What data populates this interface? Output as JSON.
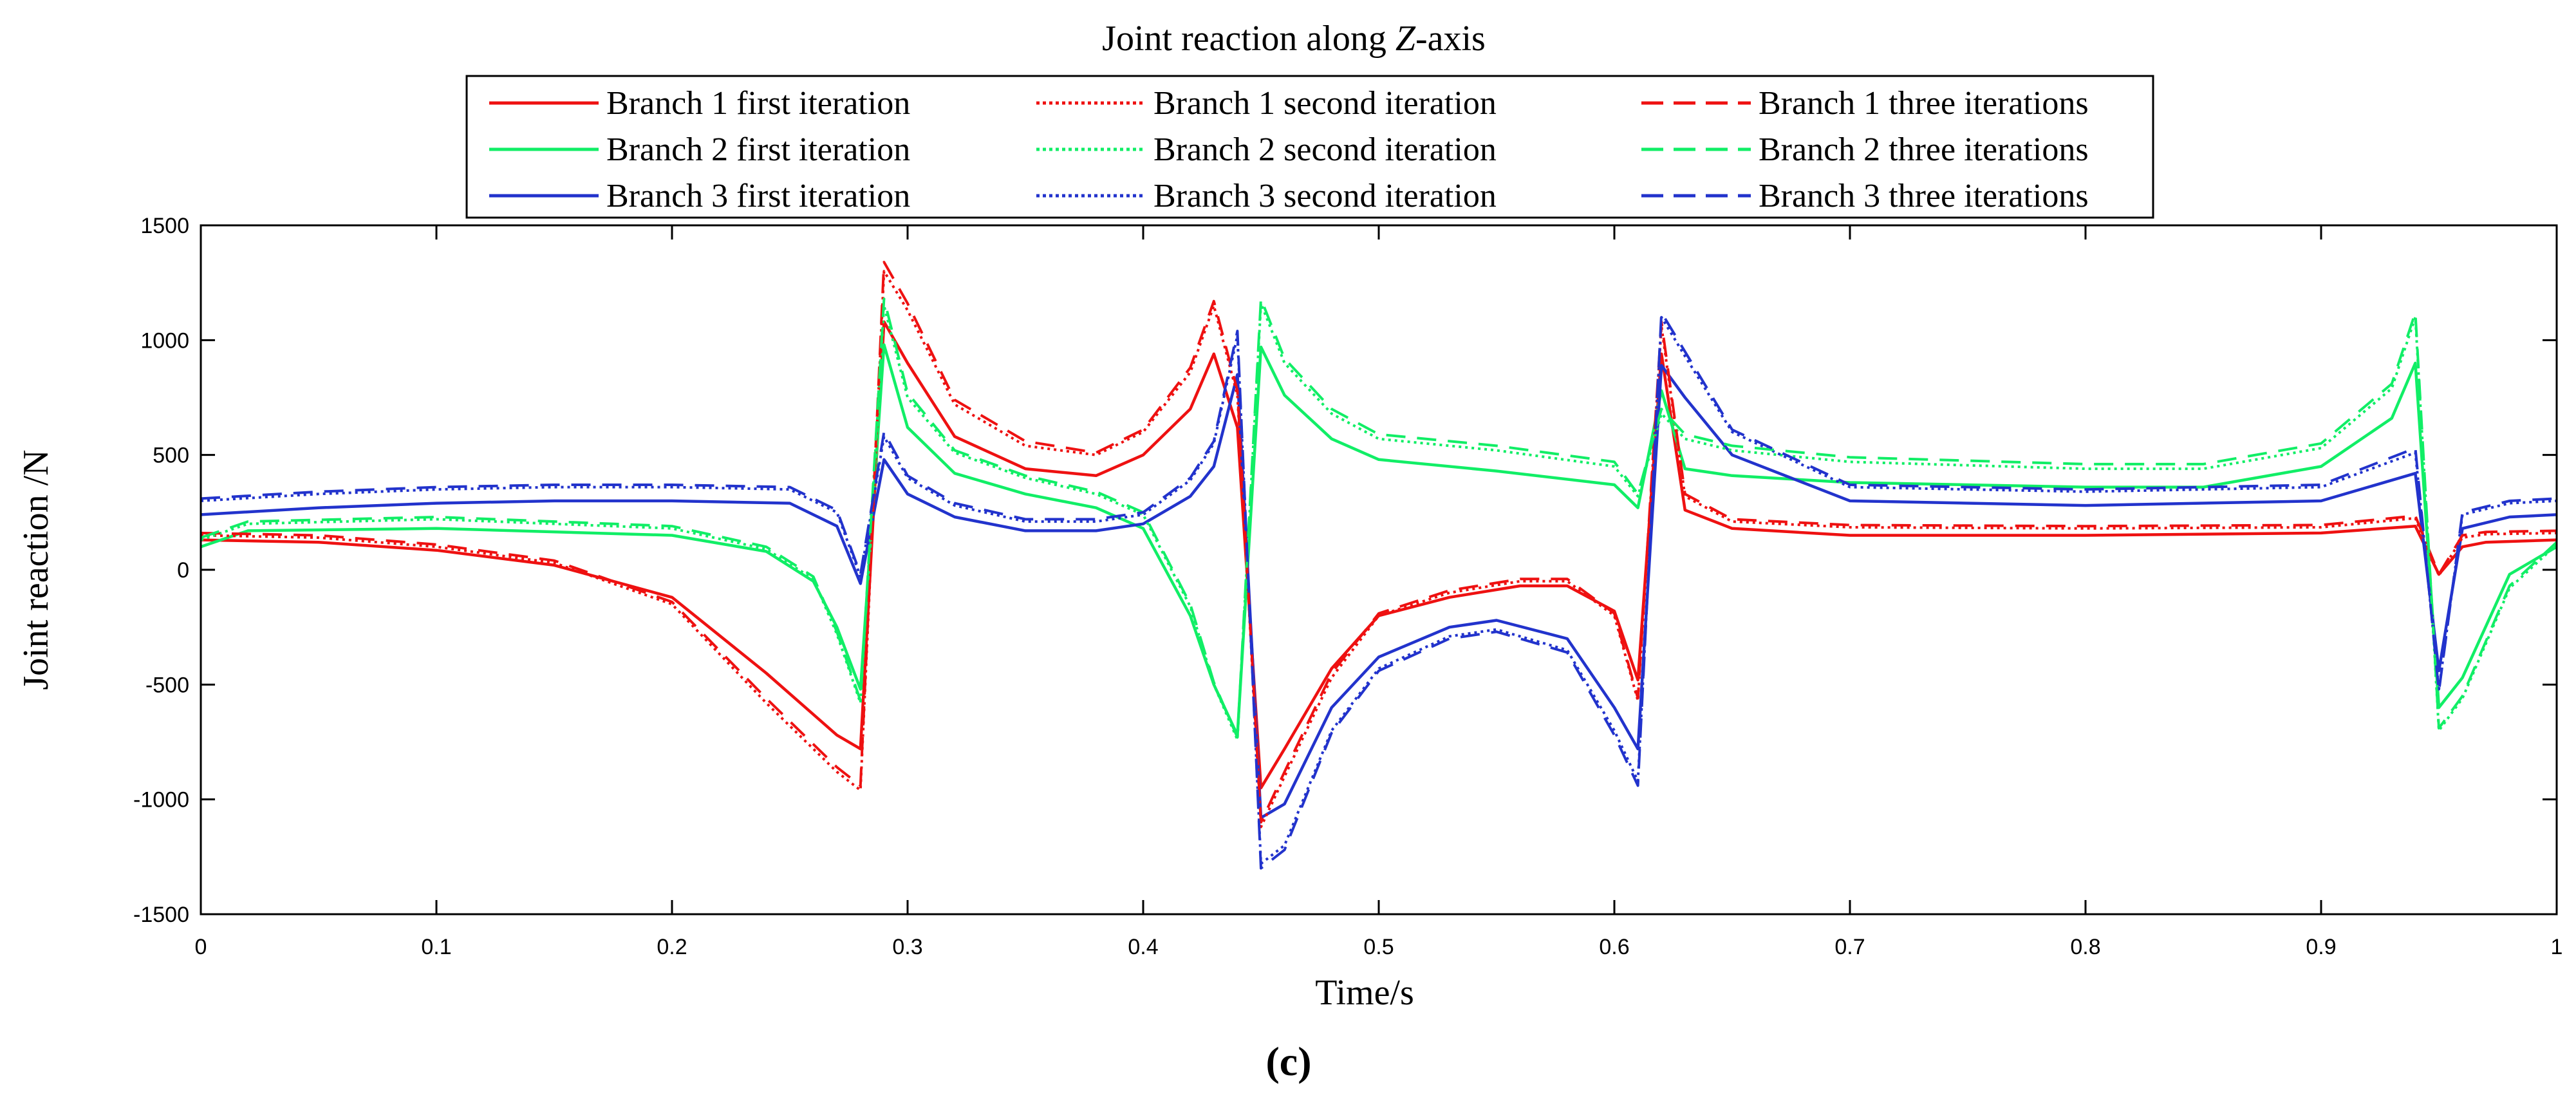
{
  "chart_data": {
    "type": "line",
    "title": "Joint reaction along Z-axis",
    "title_parts": {
      "pre": "Joint reaction along ",
      "italic": "Z",
      "post": "-axis"
    },
    "xlabel": "Time/s",
    "ylabel": "Joint reaction /N",
    "panel_label": "(c)",
    "xlim": [
      0,
      1
    ],
    "ylim": [
      -1500,
      1500
    ],
    "xticks": [
      0,
      0.1,
      0.2,
      0.3,
      0.4,
      0.5,
      0.6,
      0.7,
      0.8,
      0.9,
      1
    ],
    "xtick_labels": [
      "0",
      "0.1",
      "0.2",
      "0.3",
      "0.4",
      "0.5",
      "0.6",
      "0.7",
      "0.8",
      "0.9",
      "1"
    ],
    "yticks": [
      -1500,
      -1000,
      -500,
      0,
      500,
      1000,
      1500
    ],
    "ytick_labels": [
      "-1500",
      "-1000",
      "-500",
      "0",
      "500",
      "1000",
      "1500"
    ],
    "grid": false,
    "legend_placement": "top",
    "colors": {
      "branch1": "#ee1111",
      "branch2": "#11ee66",
      "branch3": "#2233cc",
      "axis": "#000000"
    },
    "series": [
      {
        "name": "Branch 1 first iteration",
        "branch": 1,
        "dash": "solid",
        "x": [
          0,
          0.05,
          0.1,
          0.15,
          0.2,
          0.24,
          0.27,
          0.28,
          0.29,
          0.3,
          0.32,
          0.35,
          0.38,
          0.4,
          0.42,
          0.43,
          0.44,
          0.45,
          0.46,
          0.48,
          0.5,
          0.53,
          0.56,
          0.58,
          0.6,
          0.61,
          0.62,
          0.63,
          0.65,
          0.7,
          0.8,
          0.9,
          0.94,
          0.95,
          0.96,
          0.97,
          1
        ],
        "y": [
          130,
          120,
          85,
          20,
          -120,
          -450,
          -720,
          -780,
          1080,
          900,
          580,
          440,
          410,
          500,
          700,
          940,
          620,
          -950,
          -780,
          -430,
          -200,
          -120,
          -70,
          -70,
          -180,
          -480,
          940,
          260,
          180,
          150,
          150,
          160,
          190,
          -20,
          100,
          120,
          130
        ]
      },
      {
        "name": "Branch 1 second iteration",
        "branch": 1,
        "dash": "dot",
        "x": [
          0,
          0.05,
          0.1,
          0.15,
          0.2,
          0.24,
          0.27,
          0.28,
          0.29,
          0.3,
          0.32,
          0.35,
          0.38,
          0.4,
          0.42,
          0.43,
          0.44,
          0.45,
          0.46,
          0.48,
          0.5,
          0.53,
          0.56,
          0.58,
          0.6,
          0.61,
          0.62,
          0.63,
          0.65,
          0.7,
          0.8,
          0.9,
          0.94,
          0.95,
          0.96,
          0.97,
          1
        ],
        "y": [
          150,
          140,
          100,
          30,
          -150,
          -580,
          -880,
          -960,
          1300,
          1130,
          720,
          540,
          500,
          600,
          860,
          1150,
          760,
          -1120,
          -900,
          -470,
          -200,
          -100,
          -50,
          -50,
          -200,
          -570,
          1060,
          320,
          210,
          185,
          180,
          185,
          225,
          -25,
          140,
          155,
          160
        ]
      },
      {
        "name": "Branch 1 three iterations",
        "branch": 1,
        "dash": "dash",
        "x": [
          0,
          0.05,
          0.1,
          0.15,
          0.2,
          0.24,
          0.27,
          0.28,
          0.29,
          0.3,
          0.32,
          0.35,
          0.38,
          0.4,
          0.42,
          0.43,
          0.44,
          0.45,
          0.46,
          0.48,
          0.5,
          0.53,
          0.56,
          0.58,
          0.6,
          0.61,
          0.62,
          0.63,
          0.65,
          0.7,
          0.8,
          0.9,
          0.94,
          0.95,
          0.96,
          0.97,
          1
        ],
        "y": [
          160,
          150,
          110,
          40,
          -140,
          -560,
          -860,
          -940,
          1340,
          1160,
          740,
          560,
          510,
          610,
          880,
          1170,
          780,
          -1100,
          -880,
          -450,
          -190,
          -90,
          -40,
          -40,
          -190,
          -560,
          1080,
          330,
          220,
          195,
          190,
          195,
          235,
          -20,
          150,
          165,
          170
        ]
      },
      {
        "name": "Branch 2 first iteration",
        "branch": 2,
        "dash": "solid",
        "x": [
          0,
          0.02,
          0.1,
          0.2,
          0.24,
          0.26,
          0.27,
          0.28,
          0.29,
          0.3,
          0.32,
          0.35,
          0.38,
          0.4,
          0.42,
          0.43,
          0.44,
          0.45,
          0.46,
          0.48,
          0.5,
          0.55,
          0.6,
          0.61,
          0.62,
          0.63,
          0.65,
          0.7,
          0.8,
          0.85,
          0.9,
          0.93,
          0.94,
          0.95,
          0.96,
          0.98,
          1
        ],
        "y": [
          100,
          170,
          180,
          150,
          80,
          -50,
          -250,
          -520,
          980,
          620,
          420,
          330,
          270,
          180,
          -200,
          -500,
          -720,
          970,
          760,
          570,
          480,
          430,
          370,
          270,
          780,
          440,
          410,
          380,
          360,
          360,
          450,
          660,
          900,
          -600,
          -470,
          -20,
          100
        ]
      },
      {
        "name": "Branch 2 second iteration",
        "branch": 2,
        "dash": "dot",
        "x": [
          0,
          0.02,
          0.1,
          0.2,
          0.24,
          0.26,
          0.27,
          0.28,
          0.29,
          0.3,
          0.32,
          0.35,
          0.38,
          0.4,
          0.42,
          0.43,
          0.44,
          0.45,
          0.46,
          0.48,
          0.5,
          0.55,
          0.6,
          0.61,
          0.62,
          0.63,
          0.65,
          0.7,
          0.8,
          0.85,
          0.9,
          0.93,
          0.94,
          0.95,
          0.96,
          0.98,
          1
        ],
        "y": [
          130,
          200,
          220,
          180,
          90,
          -40,
          -280,
          -580,
          1150,
          750,
          510,
          400,
          330,
          240,
          -160,
          -500,
          -740,
          1160,
          900,
          680,
          570,
          520,
          450,
          320,
          680,
          570,
          520,
          470,
          440,
          440,
          530,
          790,
          1100,
          -700,
          -560,
          -80,
          110
        ]
      },
      {
        "name": "Branch 2 three iterations",
        "branch": 2,
        "dash": "dash",
        "x": [
          0,
          0.02,
          0.1,
          0.2,
          0.24,
          0.26,
          0.27,
          0.28,
          0.29,
          0.3,
          0.32,
          0.35,
          0.38,
          0.4,
          0.42,
          0.43,
          0.44,
          0.45,
          0.46,
          0.48,
          0.5,
          0.55,
          0.6,
          0.61,
          0.62,
          0.63,
          0.65,
          0.7,
          0.8,
          0.85,
          0.9,
          0.93,
          0.94,
          0.95,
          0.96,
          0.98,
          1
        ],
        "y": [
          140,
          210,
          230,
          190,
          100,
          -30,
          -270,
          -570,
          1180,
          770,
          520,
          410,
          340,
          250,
          -150,
          -490,
          -730,
          1180,
          920,
          700,
          590,
          540,
          470,
          330,
          700,
          590,
          540,
          490,
          460,
          460,
          550,
          810,
          1120,
          -690,
          -550,
          -70,
          120
        ]
      },
      {
        "name": "Branch 3 first iteration",
        "branch": 3,
        "dash": "solid",
        "x": [
          0,
          0.05,
          0.1,
          0.15,
          0.2,
          0.25,
          0.27,
          0.28,
          0.29,
          0.3,
          0.32,
          0.35,
          0.38,
          0.4,
          0.42,
          0.43,
          0.44,
          0.45,
          0.46,
          0.48,
          0.5,
          0.53,
          0.55,
          0.58,
          0.6,
          0.61,
          0.62,
          0.63,
          0.65,
          0.7,
          0.8,
          0.9,
          0.94,
          0.95,
          0.96,
          0.98,
          1
        ],
        "y": [
          240,
          270,
          290,
          300,
          300,
          290,
          190,
          -60,
          480,
          330,
          230,
          170,
          170,
          200,
          320,
          450,
          850,
          -1080,
          -1020,
          -600,
          -380,
          -250,
          -220,
          -300,
          -600,
          -780,
          890,
          750,
          500,
          300,
          280,
          300,
          420,
          -440,
          180,
          230,
          240
        ]
      },
      {
        "name": "Branch 3 second iteration",
        "branch": 3,
        "dash": "dot",
        "x": [
          0,
          0.05,
          0.1,
          0.15,
          0.2,
          0.25,
          0.27,
          0.28,
          0.29,
          0.3,
          0.32,
          0.35,
          0.38,
          0.4,
          0.42,
          0.43,
          0.44,
          0.45,
          0.46,
          0.48,
          0.5,
          0.53,
          0.55,
          0.58,
          0.6,
          0.61,
          0.62,
          0.63,
          0.65,
          0.7,
          0.8,
          0.9,
          0.94,
          0.95,
          0.96,
          0.98,
          1
        ],
        "y": [
          300,
          330,
          350,
          360,
          360,
          350,
          250,
          -30,
          580,
          400,
          280,
          210,
          210,
          240,
          390,
          550,
          1020,
          -1280,
          -1200,
          -700,
          -430,
          -290,
          -260,
          -350,
          -700,
          -920,
          1100,
          930,
          600,
          360,
          340,
          360,
          510,
          -520,
          240,
          290,
          300
        ]
      },
      {
        "name": "Branch 3 three iterations",
        "branch": 3,
        "dash": "dash",
        "x": [
          0,
          0.05,
          0.1,
          0.15,
          0.2,
          0.25,
          0.27,
          0.28,
          0.29,
          0.3,
          0.32,
          0.35,
          0.38,
          0.4,
          0.42,
          0.43,
          0.44,
          0.45,
          0.46,
          0.48,
          0.5,
          0.53,
          0.55,
          0.58,
          0.6,
          0.61,
          0.62,
          0.63,
          0.65,
          0.7,
          0.8,
          0.9,
          0.94,
          0.95,
          0.96,
          0.98,
          1
        ],
        "y": [
          310,
          340,
          360,
          370,
          370,
          360,
          260,
          -20,
          600,
          410,
          290,
          220,
          220,
          250,
          400,
          560,
          1040,
          -1300,
          -1220,
          -710,
          -440,
          -300,
          -270,
          -360,
          -720,
          -940,
          1120,
          950,
          610,
          370,
          350,
          370,
          530,
          -530,
          250,
          300,
          310
        ]
      }
    ]
  }
}
